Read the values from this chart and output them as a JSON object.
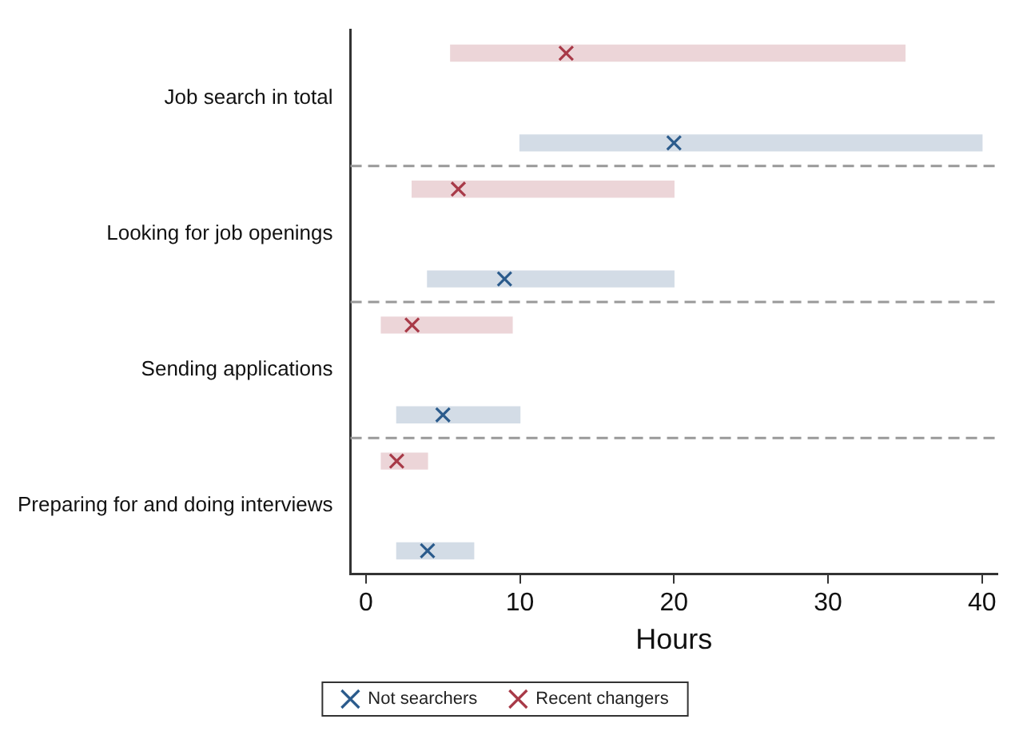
{
  "chart_data": {
    "type": "bar",
    "orientation": "horizontal",
    "xlabel": "Hours",
    "categories": [
      "Job search in total",
      "Looking for job openings",
      "Sending applications",
      "Preparing for and doing interviews"
    ],
    "series": [
      {
        "color": "#d3dce6",
        "base": [
          10,
          4,
          2,
          2
        ],
        "values": [
          30,
          16,
          8,
          5
        ]
      },
      {
        "color": "#ecd5d8",
        "base": [
          5.5,
          3,
          1,
          1
        ],
        "values": [
          29.5,
          17,
          8.5,
          3
        ]
      },
      {
        "type": "scatter",
        "name": "Not searchers",
        "color": "#2b5b8c",
        "values": [
          20,
          9,
          5,
          4
        ]
      },
      {
        "type": "scatter",
        "name": "Recent changers",
        "color": "#a83a48",
        "values": [
          13,
          6,
          3,
          2
        ]
      }
    ],
    "xlim": [
      -1,
      41
    ],
    "xticks": [
      0,
      10,
      20,
      30,
      40
    ],
    "grid": "y",
    "legend": "bottom",
    "marker": "cross"
  }
}
